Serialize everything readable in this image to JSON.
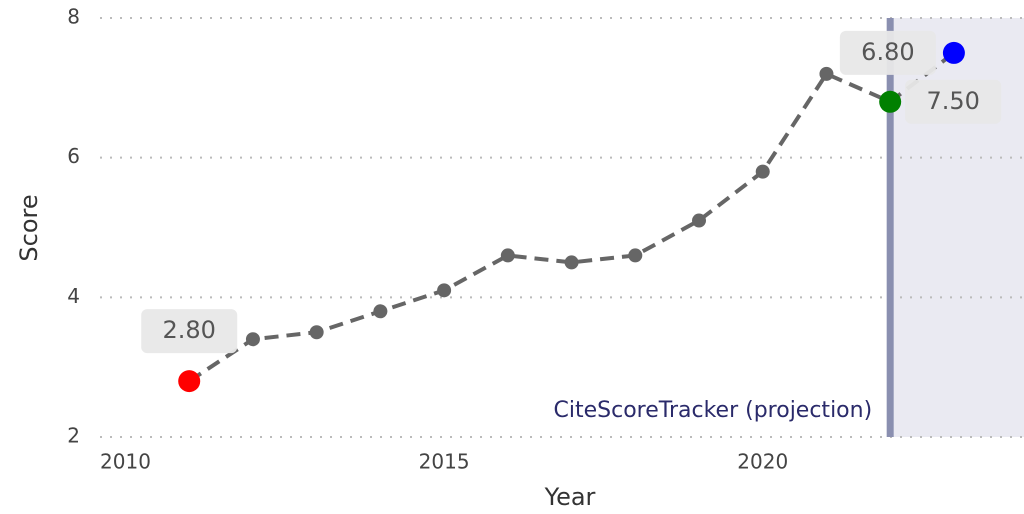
{
  "chart_data": {
    "type": "line",
    "x_label": "Year",
    "y_label": "Score",
    "x": [
      2011,
      2012,
      2013,
      2014,
      2015,
      2016,
      2017,
      2018,
      2019,
      2020,
      2021,
      2022,
      2023
    ],
    "values": [
      2.8,
      3.4,
      3.5,
      3.8,
      4.1,
      4.6,
      4.5,
      4.6,
      5.1,
      5.8,
      7.2,
      6.8,
      7.5
    ],
    "value_labels": [
      "2.80",
      null,
      null,
      null,
      null,
      null,
      null,
      null,
      null,
      null,
      null,
      "6.80",
      "7.50"
    ],
    "point_colors": [
      "#ff0000",
      null,
      null,
      null,
      null,
      null,
      null,
      null,
      null,
      null,
      null,
      "#008000",
      "#0000ff"
    ],
    "color": "#666666",
    "xlim": [
      2009.6,
      2024.1
    ],
    "xticks": [
      2010,
      2015,
      2020
    ],
    "ylim": [
      2,
      8
    ],
    "yticks": [
      2,
      4,
      6,
      8
    ],
    "grid": true,
    "projection": {
      "start": 2022,
      "label": "CiteScoreTracker (projection)"
    }
  }
}
